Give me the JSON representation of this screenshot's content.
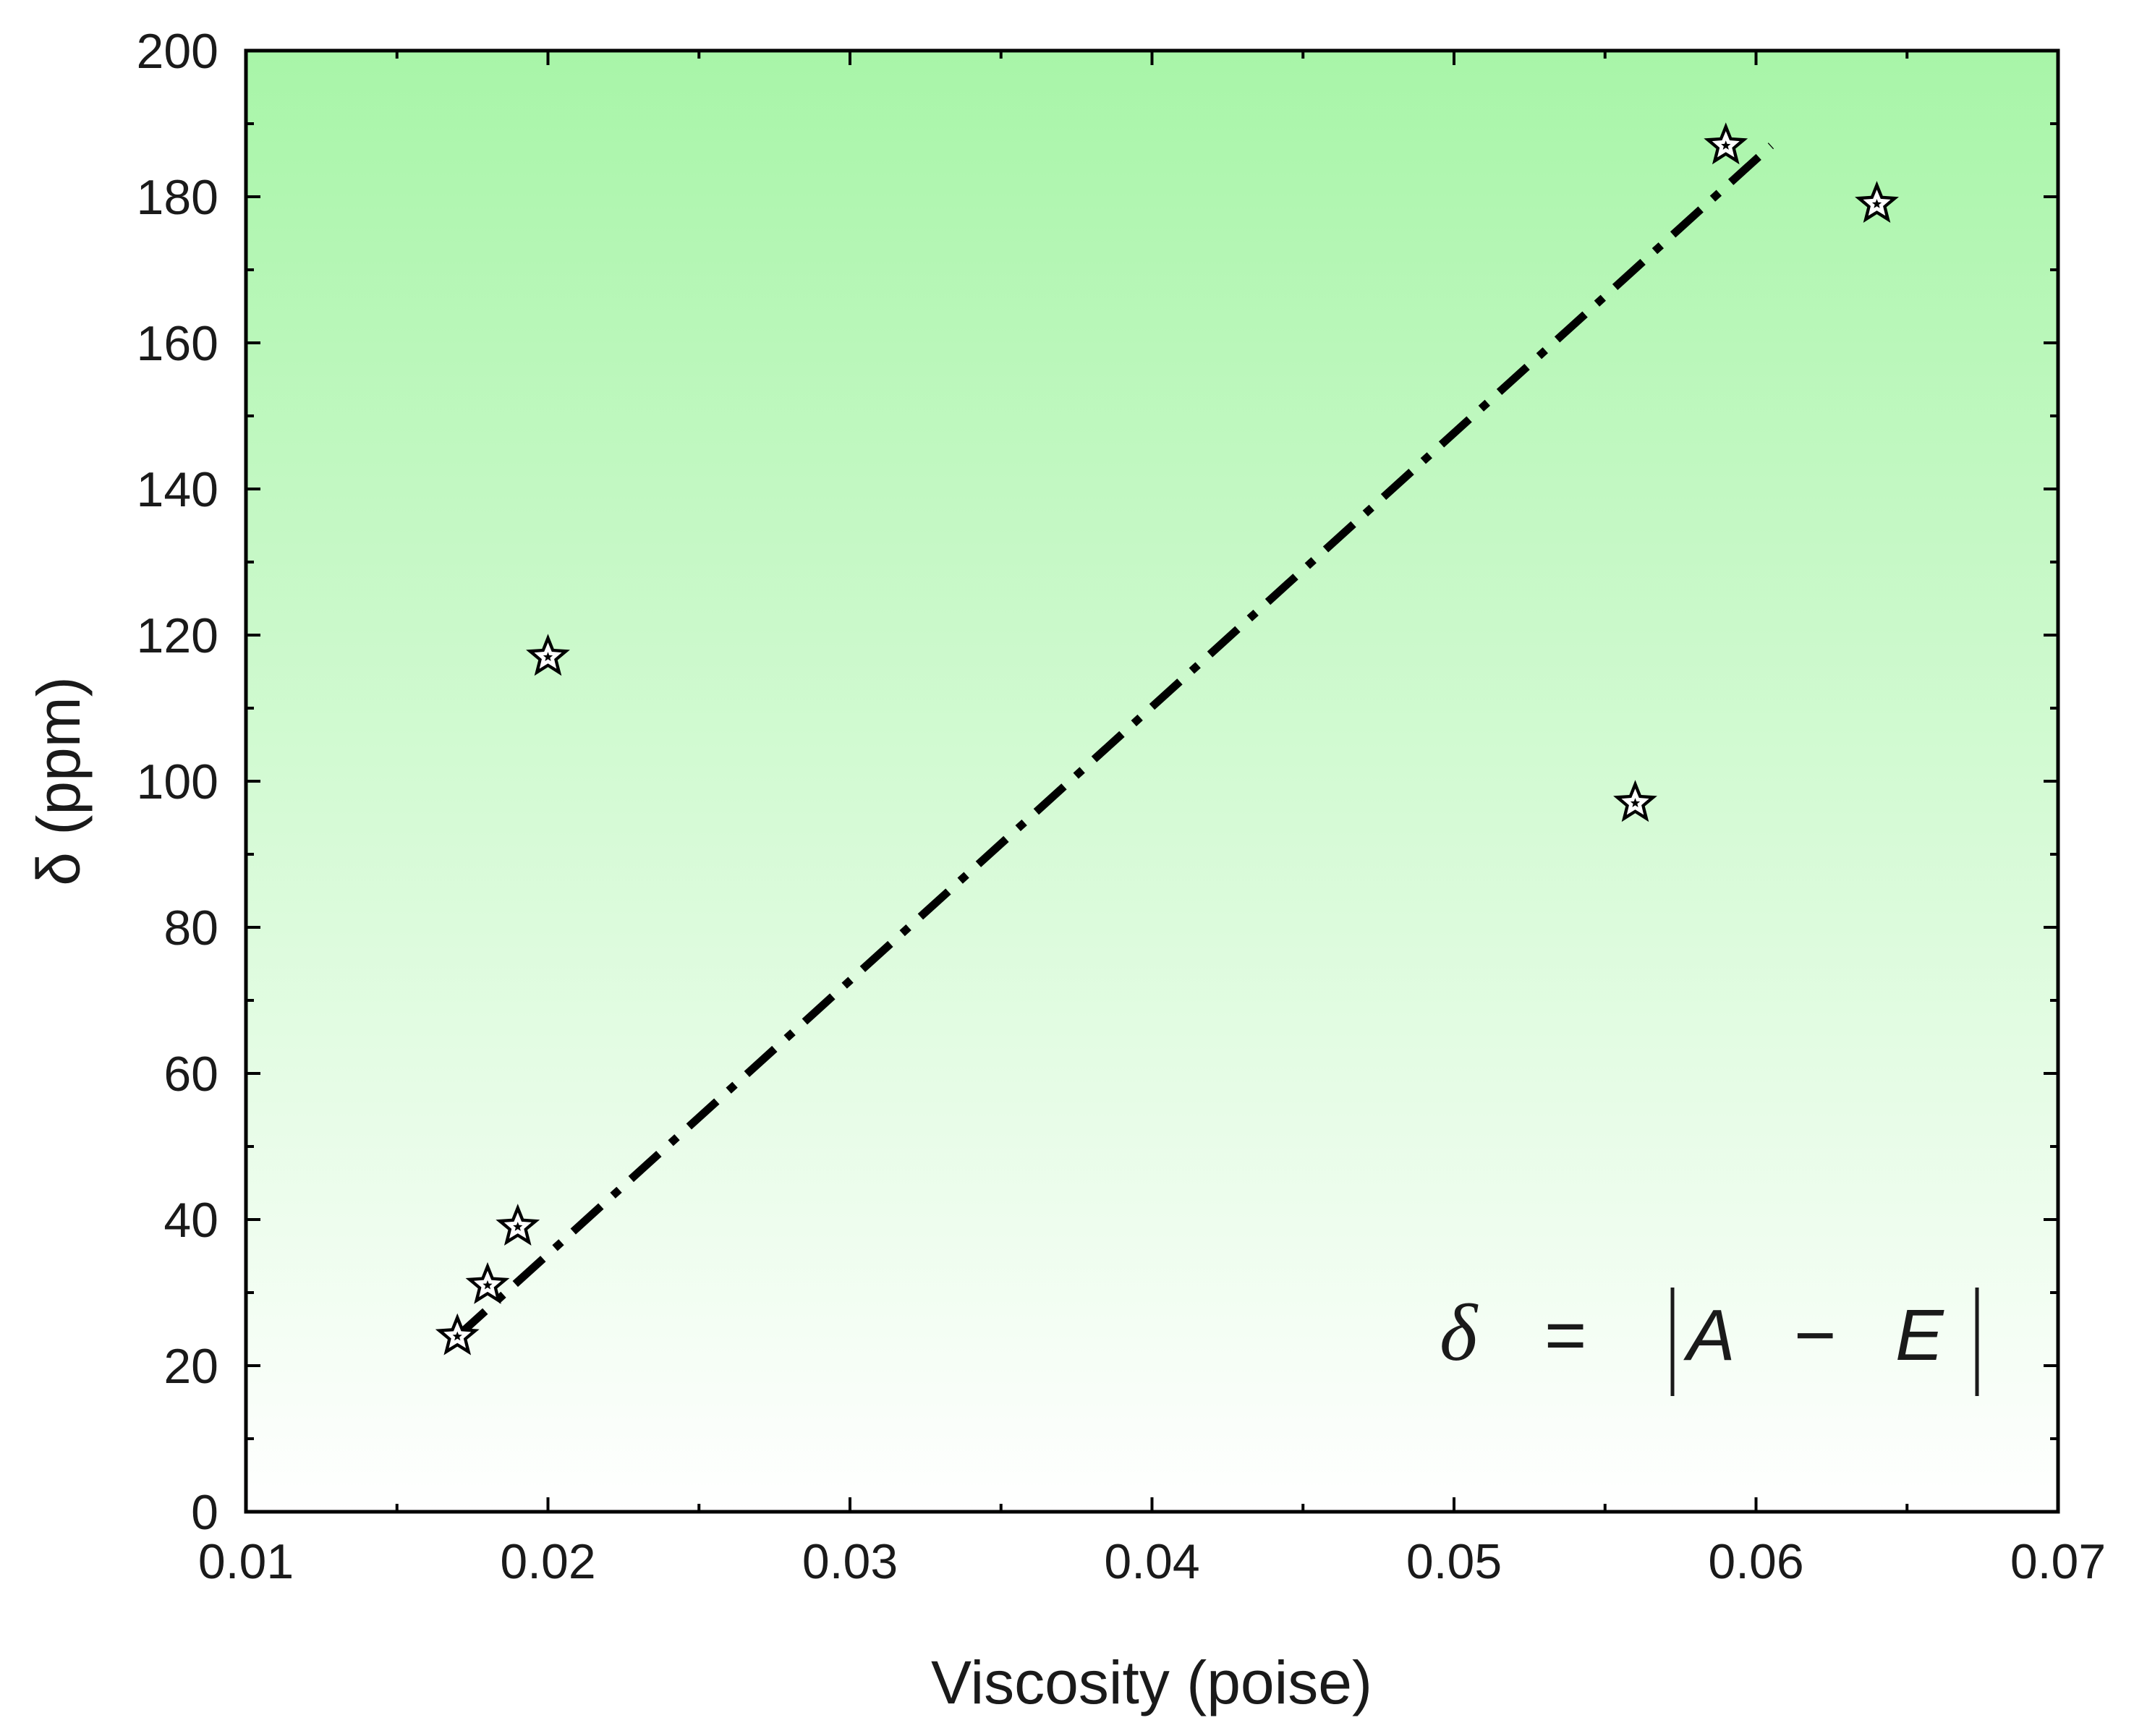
{
  "chart_data": {
    "type": "scatter",
    "title": "",
    "xlabel": "Viscosity (poise)",
    "ylabel": "δ (ppm)",
    "xlim": [
      0.01,
      0.07
    ],
    "ylim": [
      0,
      200
    ],
    "x_ticks": [
      "0.01",
      "0.02",
      "0.03",
      "0.04",
      "0.05",
      "0.06",
      "0.07"
    ],
    "y_ticks": [
      "0",
      "20",
      "40",
      "60",
      "80",
      "100",
      "120",
      "140",
      "160",
      "180",
      "200"
    ],
    "grid": false,
    "background_gradient": {
      "top": "#a8f5a8",
      "bottom": "#ffffff"
    },
    "marker": "star",
    "series": [
      {
        "points": [
          {
            "x": 0.017,
            "y": 24
          },
          {
            "x": 0.018,
            "y": 31
          },
          {
            "x": 0.019,
            "y": 39
          },
          {
            "x": 0.02,
            "y": 117
          },
          {
            "x": 0.056,
            "y": 97
          },
          {
            "x": 0.059,
            "y": 187
          },
          {
            "x": 0.064,
            "y": 179
          }
        ]
      }
    ],
    "fit_line": {
      "style": "dash-dot",
      "x": [
        0.017,
        0.0605
      ],
      "y": [
        24,
        187
      ]
    },
    "annotation": {
      "delta": "δ",
      "equals": "=",
      "a": "A",
      "minus": "−",
      "e": "E"
    }
  }
}
